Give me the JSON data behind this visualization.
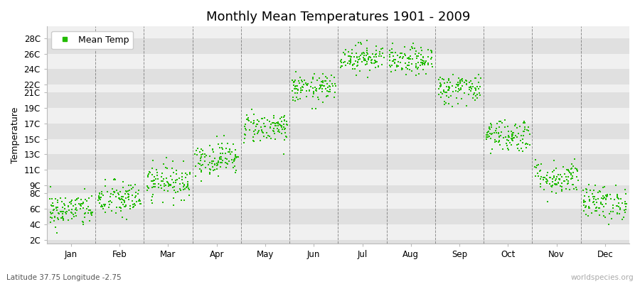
{
  "title": "Monthly Mean Temperatures 1901 - 2009",
  "ylabel": "Temperature",
  "lat_label": "Latitude 37.75 Longitude -2.75",
  "watermark": "worldspecies.org",
  "dot_color": "#22bb00",
  "dot_size": 3,
  "yticks": [
    2,
    4,
    6,
    8,
    9,
    11,
    13,
    15,
    17,
    19,
    21,
    22,
    24,
    26,
    28
  ],
  "ytick_labels": [
    "2C",
    "4C",
    "6C",
    "8C",
    "9C",
    "11C",
    "13C",
    "15C",
    "17C",
    "19C",
    "21C",
    "22C",
    "24C",
    "26C",
    "28C"
  ],
  "ylim": [
    1.5,
    29.5
  ],
  "months": [
    "Jan",
    "Feb",
    "Mar",
    "Apr",
    "May",
    "Jun",
    "Jul",
    "Aug",
    "Sep",
    "Oct",
    "Nov",
    "Dec"
  ],
  "month_means": [
    5.8,
    7.2,
    9.5,
    12.5,
    16.5,
    21.5,
    25.5,
    25.0,
    21.5,
    15.5,
    10.0,
    6.8
  ],
  "month_stds": [
    1.1,
    1.2,
    1.1,
    1.1,
    1.0,
    0.9,
    0.9,
    0.9,
    1.0,
    1.1,
    1.1,
    1.1
  ],
  "n_years": 109,
  "band_color_dark": "#e0e0e0",
  "band_color_light": "#f0f0f0",
  "background_color": "#ffffff",
  "vline_color": "#666666",
  "grid_color": "#555555",
  "legend_label": "Mean Temp",
  "title_fontsize": 13,
  "axis_fontsize": 9,
  "tick_fontsize": 8.5
}
